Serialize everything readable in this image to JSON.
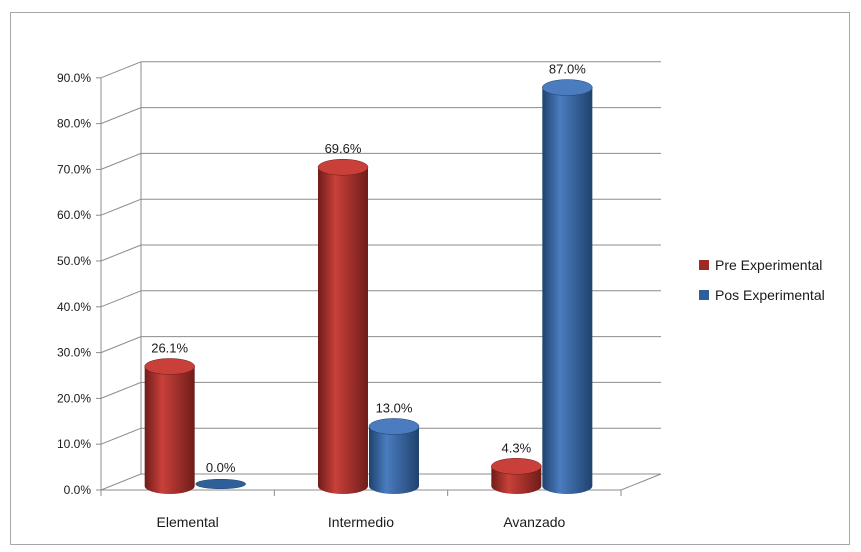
{
  "chart_data": {
    "type": "bar",
    "style": "3d-cylinder",
    "categories": [
      "Elemental",
      "Intermedio",
      "Avanzado"
    ],
    "series": [
      {
        "name": "Pre Experimental",
        "values": [
          26.1,
          69.6,
          4.3
        ],
        "labels": [
          "26.1%",
          "69.6%",
          "4.3%"
        ],
        "color": "#9e2a26",
        "color_light": "#c9403a",
        "color_dark": "#6f1c19"
      },
      {
        "name": "Pos Experimental",
        "values": [
          0.0,
          13.0,
          87.0
        ],
        "labels": [
          "0.0%",
          "13.0%",
          "87.0%"
        ],
        "color": "#2f5f98",
        "color_light": "#4a7cbf",
        "color_dark": "#1f426d"
      }
    ],
    "y_ticks": [
      "0.0%",
      "10.0%",
      "20.0%",
      "30.0%",
      "40.0%",
      "50.0%",
      "60.0%",
      "70.0%",
      "80.0%",
      "90.0%"
    ],
    "ylim": [
      0,
      90
    ],
    "grid": true,
    "legend_position": "right"
  }
}
